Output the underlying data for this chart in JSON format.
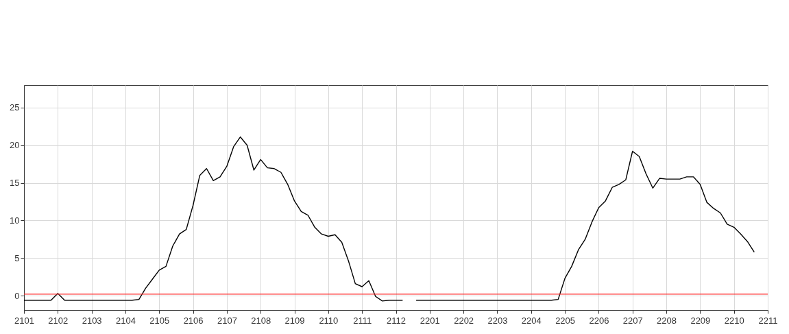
{
  "chart_data": {
    "type": "line",
    "categories": [
      "2101",
      null,
      null,
      null,
      null,
      "2102",
      null,
      null,
      null,
      null,
      "2103",
      null,
      null,
      null,
      null,
      "2104",
      null,
      null,
      null,
      null,
      "2105",
      null,
      null,
      null,
      null,
      "2106",
      null,
      null,
      null,
      null,
      "2107",
      null,
      null,
      null,
      null,
      "2108",
      null,
      null,
      null,
      null,
      "2109",
      null,
      null,
      null,
      null,
      "2110",
      null,
      null,
      null,
      null,
      "2111",
      null,
      null,
      null,
      null,
      "2112",
      null,
      null,
      null,
      null,
      "2201",
      null,
      null,
      null,
      null,
      "2202",
      null,
      null,
      null,
      null,
      "2203",
      null,
      null,
      null,
      null,
      "2204",
      null,
      null,
      null,
      null,
      "2205",
      null,
      null,
      null,
      null,
      "2206",
      null,
      null,
      null,
      null,
      "2207",
      null,
      null,
      null,
      null,
      "2208",
      null,
      null,
      null,
      null,
      "2209",
      null,
      null,
      null,
      null,
      "2210",
      null,
      null,
      null,
      null,
      "2211"
    ],
    "series": [
      {
        "color": "#000000",
        "values": [
          -0.6,
          -0.6,
          -0.6,
          -0.6,
          -0.6,
          0.3,
          -0.6,
          -0.6,
          -0.6,
          -0.6,
          -0.6,
          -0.6,
          -0.6,
          -0.6,
          -0.6,
          -0.6,
          -0.6,
          -0.5,
          1.0,
          2.2,
          3.4,
          3.9,
          6.6,
          8.2,
          8.8,
          12.0,
          16.0,
          16.9,
          15.3,
          15.8,
          17.2,
          19.8,
          21.1,
          20.0,
          16.7,
          18.1,
          17.0,
          16.9,
          16.4,
          14.8,
          12.6,
          11.2,
          10.7,
          9.1,
          8.2,
          7.9,
          8.1,
          7.1,
          4.6,
          1.6,
          1.2,
          2.0,
          -0.1,
          -0.7,
          -0.6,
          -0.6,
          -0.6,
          null,
          -0.6,
          -0.6,
          -0.6,
          -0.6,
          -0.6,
          -0.6,
          -0.6,
          -0.6,
          -0.6,
          -0.6,
          -0.6,
          -0.6,
          -0.6,
          -0.6,
          -0.6,
          -0.6,
          -0.6,
          -0.6,
          -0.6,
          -0.6,
          -0.6,
          -0.5,
          2.3,
          3.9,
          6.1,
          7.5,
          9.8,
          11.7,
          12.6,
          14.4,
          14.8,
          15.4,
          19.2,
          18.5,
          16.2,
          14.3,
          15.6,
          15.5,
          15.5,
          15.5,
          15.8,
          15.8,
          14.8,
          12.4,
          11.6,
          11.0,
          9.5,
          9.1,
          8.2,
          7.2,
          5.8,
          null,
          null
        ]
      }
    ],
    "ylim": [
      -1.9,
      28
    ],
    "yticks": [
      0,
      5,
      10,
      15,
      20,
      25
    ],
    "grid": true,
    "ref_lines": [
      {
        "axis": "y",
        "value": 0.2,
        "color": "#ff3333"
      }
    ]
  }
}
